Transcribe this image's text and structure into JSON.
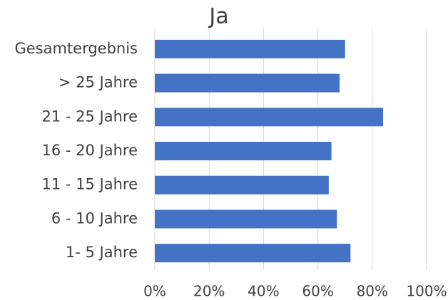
{
  "chart_data": {
    "type": "hbar",
    "title": "Ja",
    "categories": [
      "Gesamtergebnis",
      "> 25 Jahre",
      "21 - 25 Jahre",
      "16 - 20 Jahre",
      "11 - 15 Jahre",
      "6 - 10 Jahre",
      "1- 5 Jahre"
    ],
    "values": [
      70,
      68,
      84,
      65,
      64,
      67,
      72
    ],
    "color": "#4472c4",
    "xlim": [
      0,
      100
    ],
    "xticks": [
      {
        "value": 0,
        "label": "0%"
      },
      {
        "value": 20,
        "label": "20%"
      },
      {
        "value": 40,
        "label": "40%"
      },
      {
        "value": 60,
        "label": "60%"
      },
      {
        "value": 80,
        "label": "80%"
      },
      {
        "value": 100,
        "label": "100%"
      }
    ],
    "grid": true
  }
}
